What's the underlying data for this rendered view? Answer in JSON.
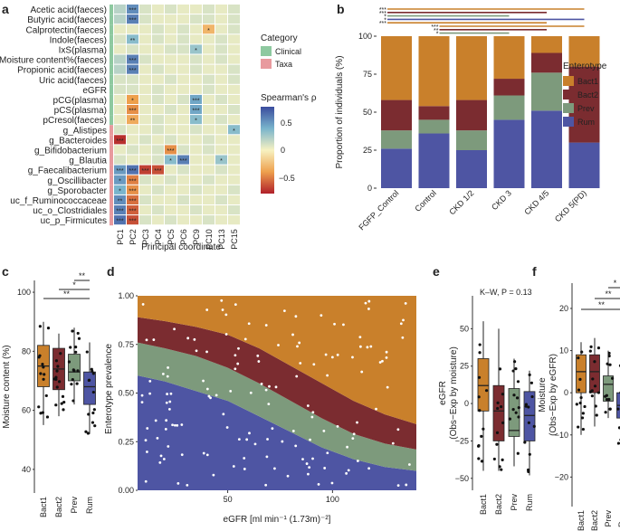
{
  "panels": {
    "a": "a",
    "b": "b",
    "c": "c",
    "d": "d",
    "e": "e",
    "f": "f"
  },
  "colors": {
    "bact1": "#c9802b",
    "bact2": "#7b2c30",
    "prev": "#7d9a7c",
    "rum": "#4e55a3",
    "clinical": "#8ec9a0",
    "taxa": "#e89a9e"
  },
  "chart_data": [
    {
      "id": "a",
      "type": "heatmap",
      "rows": [
        "Acetic acid(faeces)",
        "Butyric acid(faeces)",
        "Calprotectin(faeces)",
        "Indole(faeces)",
        "IxS(plasma)",
        "Moisture content%(faeces)",
        "Propionic acid(faeces)",
        "Uric acid(faeces)",
        "eGFR",
        "pCG(plasma)",
        "pCS(plasma)",
        "pCresol(faeces)",
        "g_Alistipes",
        "g_Bacteroides",
        "g_Bifidobacterium",
        "g_Blautia",
        "g_Faecalibacterium",
        "g_Oscillibacter",
        "g_Sporobacter",
        "uc_f_Ruminococcaceae",
        "uc_o_Clostridiales",
        "uc_p_Firmicutes"
      ],
      "row_category": [
        "Clinical",
        "Clinical",
        "Clinical",
        "Clinical",
        "Clinical",
        "Clinical",
        "Clinical",
        "Clinical",
        "Clinical",
        "Clinical",
        "Clinical",
        "Clinical",
        "Taxa",
        "Taxa",
        "Taxa",
        "Taxa",
        "Taxa",
        "Taxa",
        "Taxa",
        "Taxa",
        "Taxa",
        "Taxa"
      ],
      "columns": [
        "PC1",
        "PC2",
        "PC3",
        "PC4",
        "PC5",
        "PC6",
        "PC9",
        "PC10",
        "PC13",
        "PC15"
      ],
      "xlabel": "Principal coordinate",
      "legend_category_title": "Category",
      "legend_categories": [
        "Clinical",
        "Taxa"
      ],
      "colorbar_title": "Spearman's ρ",
      "colorbar_ticks": [
        "0.5",
        "0",
        "−0.5"
      ],
      "colorbar_range": [
        -0.8,
        0.8
      ],
      "values": [
        [
          0.2,
          0.55,
          0.1,
          0.05,
          0.1,
          0.05,
          0.05,
          0.1,
          0.05,
          0.1
        ],
        [
          0.2,
          0.6,
          0.1,
          0.05,
          0.05,
          0.05,
          0.1,
          0.1,
          0.05,
          0.1
        ],
        [
          0.05,
          0.05,
          0.05,
          0.1,
          0.05,
          0.1,
          0.05,
          -0.3,
          0.05,
          0.1
        ],
        [
          0.1,
          0.35,
          0.05,
          0.1,
          0.05,
          0.1,
          0.05,
          0.05,
          0.1,
          0.05
        ],
        [
          0.05,
          0.1,
          0.05,
          0.05,
          0.1,
          0.1,
          0.3,
          0.05,
          0.1,
          0.05
        ],
        [
          0.2,
          0.6,
          0.1,
          0.05,
          0.05,
          0.05,
          0.1,
          0.05,
          0.1,
          0.05
        ],
        [
          0.2,
          0.6,
          0.05,
          0.1,
          0.05,
          0.05,
          0.1,
          0.05,
          0.05,
          0.1
        ],
        [
          0.1,
          0.1,
          0.05,
          0.05,
          0.1,
          0.05,
          0.05,
          0.1,
          0.05,
          0.1
        ],
        [
          0.1,
          0.1,
          0.05,
          0.1,
          0.05,
          0.05,
          0.05,
          0.1,
          0.05,
          0.05
        ],
        [
          0.05,
          -0.4,
          0.05,
          0.1,
          0.05,
          0.1,
          0.45,
          0.05,
          0.1,
          0.05
        ],
        [
          0.05,
          -0.45,
          0.05,
          0.05,
          0.1,
          0.05,
          0.45,
          0.05,
          0.05,
          0.1
        ],
        [
          0.05,
          -0.35,
          0.05,
          0.1,
          0.05,
          0.05,
          0.35,
          0.05,
          0.1,
          0.05
        ],
        [
          0.1,
          0.05,
          0.05,
          0.1,
          0.05,
          0.05,
          0.1,
          0.05,
          0.05,
          0.35
        ],
        [
          -0.75,
          0.05,
          0.1,
          0.05,
          0.1,
          0.05,
          0.05,
          0.1,
          0.05,
          0.05
        ],
        [
          0.05,
          0.1,
          0.05,
          0.1,
          -0.45,
          0.1,
          0.05,
          0.1,
          0.05,
          0.05
        ],
        [
          0.1,
          0.05,
          0.05,
          0.1,
          0.35,
          0.6,
          0.05,
          0.05,
          0.3,
          0.05
        ],
        [
          0.5,
          0.65,
          -0.7,
          -0.65,
          0.05,
          0.1,
          0.05,
          0.05,
          0.1,
          0.05
        ],
        [
          0.5,
          -0.5,
          0.1,
          0.05,
          0.1,
          0.05,
          0.05,
          0.1,
          0.05,
          0.05
        ],
        [
          0.4,
          -0.45,
          0.05,
          0.1,
          0.05,
          0.05,
          0.1,
          0.05,
          0.05,
          0.1
        ],
        [
          0.55,
          -0.55,
          0.1,
          0.05,
          0.05,
          0.1,
          0.05,
          0.05,
          0.1,
          0.05
        ],
        [
          0.6,
          -0.6,
          0.05,
          0.1,
          0.05,
          0.05,
          0.1,
          0.05,
          0.05,
          0.1
        ],
        [
          0.65,
          -0.65,
          0.1,
          0.05,
          0.1,
          0.05,
          0.05,
          0.1,
          0.05,
          0.05
        ]
      ],
      "stars": [
        [
          "",
          "***",
          "",
          "",
          "",
          "",
          "",
          "",
          "",
          ""
        ],
        [
          "",
          "***",
          "",
          "",
          "",
          "",
          "",
          "",
          "",
          ""
        ],
        [
          "",
          "",
          "",
          "",
          "",
          "",
          "",
          "*",
          "",
          ""
        ],
        [
          "",
          "**",
          "",
          "",
          "",
          "",
          "",
          "",
          "",
          ""
        ],
        [
          "",
          "",
          "",
          "",
          "",
          "",
          "*",
          "",
          "",
          ""
        ],
        [
          "",
          "***",
          "",
          "",
          "",
          "",
          "",
          "",
          "",
          ""
        ],
        [
          "",
          "***",
          "",
          "",
          "",
          "",
          "",
          "",
          "",
          ""
        ],
        [
          "",
          "",
          "",
          "",
          "",
          "",
          "",
          "",
          "",
          ""
        ],
        [
          "",
          "",
          "",
          "",
          "",
          "",
          "",
          "",
          "",
          ""
        ],
        [
          "",
          "*",
          "",
          "",
          "",
          "",
          "***",
          "",
          "",
          ""
        ],
        [
          "",
          "***",
          "",
          "",
          "",
          "",
          "***",
          "",
          "",
          ""
        ],
        [
          "",
          "**",
          "",
          "",
          "",
          "",
          "*",
          "",
          "",
          ""
        ],
        [
          "",
          "",
          "",
          "",
          "",
          "",
          "",
          "",
          "",
          "*"
        ],
        [
          "***",
          "",
          "",
          "",
          "",
          "",
          "",
          "",
          "",
          ""
        ],
        [
          "",
          "",
          "",
          "",
          "***",
          "",
          "",
          "",
          "",
          ""
        ],
        [
          "",
          "",
          "",
          "",
          "*",
          "***",
          "",
          "",
          "*",
          ""
        ],
        [
          "***",
          "***",
          "***",
          "***",
          "",
          "",
          "",
          "",
          "",
          ""
        ],
        [
          "*",
          "***",
          "",
          "",
          "",
          "",
          "",
          "",
          "",
          ""
        ],
        [
          "*",
          "***",
          "",
          "",
          "",
          "",
          "",
          "",
          "",
          ""
        ],
        [
          "**",
          "***",
          "",
          "",
          "",
          "",
          "",
          "",
          "",
          ""
        ],
        [
          "***",
          "***",
          "",
          "",
          "",
          "",
          "",
          "",
          "",
          ""
        ],
        [
          "***",
          "***",
          "",
          "",
          "",
          "",
          "",
          "",
          "",
          ""
        ]
      ]
    },
    {
      "id": "b",
      "type": "bar",
      "ylabel": "Proportion of individuals (%)",
      "categories": [
        "FGFP_Control",
        "Control",
        "CKD 1/2",
        "CKD 3",
        "CKD 4/5",
        "CKD 5(PD)"
      ],
      "legend_title": "Enterotype",
      "yticks": [
        "0",
        "25",
        "50",
        "75",
        "100"
      ],
      "ylim": [
        0,
        100
      ],
      "series": [
        {
          "name": "Rum",
          "values": [
            26,
            36,
            25,
            45,
            51,
            30
          ]
        },
        {
          "name": "Prev",
          "values": [
            12,
            9,
            13,
            16,
            25,
            0
          ]
        },
        {
          "name": "Bact2",
          "values": [
            20,
            9,
            20,
            11,
            13,
            50
          ]
        },
        {
          "name": "Bact1",
          "values": [
            42,
            46,
            42,
            28,
            11,
            20
          ]
        }
      ],
      "sig_lines": [
        {
          "from": "FGFP_Control",
          "to": "CKD 5(PD)",
          "label": "***"
        },
        {
          "from": "FGFP_Control",
          "to": "CKD 4/5",
          "label": "***"
        },
        {
          "from": "FGFP_Control",
          "to": "CKD 3",
          "label": "*"
        },
        {
          "from": "FGFP_Control",
          "to": "CKD 5(PD)",
          "label": "*"
        },
        {
          "from": "FGFP_Control",
          "to": "CKD 4/5",
          "label": "***"
        },
        {
          "from": "Control",
          "to": "CKD 5(PD)",
          "label": "***"
        },
        {
          "from": "Control",
          "to": "CKD 4/5",
          "label": "**"
        },
        {
          "from": "Control",
          "to": "CKD 3",
          "label": "*"
        }
      ]
    },
    {
      "id": "c",
      "type": "boxplot",
      "ylabel": "Moisture content (%)",
      "categories": [
        "Bact1",
        "Bact2",
        "Prev",
        "Rum"
      ],
      "yticks": [
        "40",
        "60",
        "80",
        "100"
      ],
      "ylim": [
        32,
        104
      ],
      "stats": [
        {
          "q1": 68,
          "median": 75,
          "q3": 82,
          "lo": 55,
          "hi": 90
        },
        {
          "q1": 67,
          "median": 74,
          "q3": 81,
          "lo": 58,
          "hi": 86
        },
        {
          "q1": 70,
          "median": 73,
          "q3": 79,
          "lo": 62,
          "hi": 88
        },
        {
          "q1": 62,
          "median": 68,
          "q3": 73,
          "lo": 52,
          "hi": 83
        }
      ],
      "sig_lines": [
        {
          "from": "Prev",
          "to": "Rum",
          "label": "**"
        },
        {
          "from": "Bact2",
          "to": "Rum",
          "label": "*"
        },
        {
          "from": "Bact1",
          "to": "Rum",
          "label": "**"
        }
      ]
    },
    {
      "id": "d",
      "type": "area",
      "ylabel": "Enterotype prevalence",
      "xlabel": "eGFR [ml min⁻¹ (1.73m)⁻²]",
      "xticks": [
        "50",
        "100"
      ],
      "yticks": [
        "0.00",
        "0.25",
        "0.50",
        "0.75",
        "1.00"
      ],
      "xlim": [
        7,
        140
      ],
      "ylim": [
        0,
        1
      ],
      "x": [
        7,
        20,
        35,
        50,
        65,
        80,
        95,
        110,
        125,
        140
      ],
      "series": [
        {
          "name": "Rum",
          "values": [
            0.59,
            0.56,
            0.51,
            0.46,
            0.38,
            0.3,
            0.22,
            0.16,
            0.12,
            0.1
          ]
        },
        {
          "name": "Prev",
          "values": [
            0.76,
            0.73,
            0.69,
            0.63,
            0.55,
            0.46,
            0.37,
            0.29,
            0.24,
            0.21
          ]
        },
        {
          "name": "Bact2",
          "values": [
            0.89,
            0.87,
            0.84,
            0.8,
            0.73,
            0.64,
            0.55,
            0.46,
            0.39,
            0.34
          ]
        },
        {
          "name": "Bact1",
          "values": [
            1,
            1,
            1,
            1,
            1,
            1,
            1,
            1,
            1,
            1
          ]
        }
      ]
    },
    {
      "id": "e",
      "type": "boxplot",
      "ylabel": "eGFR (Obs−Exp by moisture)",
      "annotation": "K–W, P = 0.13",
      "categories": [
        "Bact1",
        "Bact2",
        "Prev",
        "Rum"
      ],
      "yticks": [
        "50",
        "25",
        "0",
        "−25",
        "−50"
      ],
      "ylim": [
        -58,
        72
      ],
      "stats": [
        {
          "q1": -5,
          "median": 12,
          "q3": 30,
          "lo": -45,
          "hi": 55
        },
        {
          "q1": -25,
          "median": -5,
          "q3": 12,
          "lo": -45,
          "hi": 50
        },
        {
          "q1": -22,
          "median": -18,
          "q3": 10,
          "lo": -42,
          "hi": 30
        },
        {
          "q1": -25,
          "median": -8,
          "q3": 8,
          "lo": -48,
          "hi": 22
        }
      ]
    },
    {
      "id": "f",
      "type": "boxplot",
      "ylabel": "Moisture (Obs−Exp by eGFR)",
      "categories": [
        "Bact1",
        "Bact2",
        "Prev",
        "Rum"
      ],
      "yticks": [
        "20",
        "10",
        "0",
        "−10",
        "−20"
      ],
      "ylim": [
        -27,
        26
      ],
      "stats": [
        {
          "q1": 0,
          "median": 5,
          "q3": 9,
          "lo": -10,
          "hi": 12
        },
        {
          "q1": 0,
          "median": 5,
          "q3": 9,
          "lo": -8,
          "hi": 13
        },
        {
          "q1": -2,
          "median": 2,
          "q3": 4,
          "lo": -6,
          "hi": 10
        },
        {
          "q1": -6,
          "median": -3,
          "q3": 0,
          "lo": -14,
          "hi": 9
        }
      ],
      "sig_lines": [
        {
          "from": "Prev",
          "to": "Rum",
          "label": "*"
        },
        {
          "from": "Bact2",
          "to": "Rum",
          "label": "**"
        },
        {
          "from": "Bact1",
          "to": "Rum",
          "label": "**"
        }
      ]
    }
  ]
}
